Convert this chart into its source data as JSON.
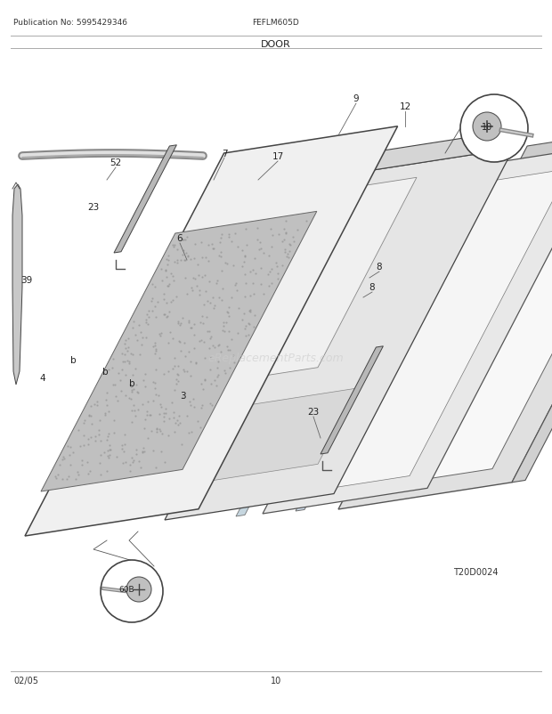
{
  "title": "DOOR",
  "pub_no": "Publication No: 5995429346",
  "model": "FEFLM605D",
  "diagram_id": "T20D0024",
  "date": "02/05",
  "page": "10",
  "watermark": "eReplacementParts.com",
  "bg_color": "#ffffff",
  "line_color": "#555555"
}
